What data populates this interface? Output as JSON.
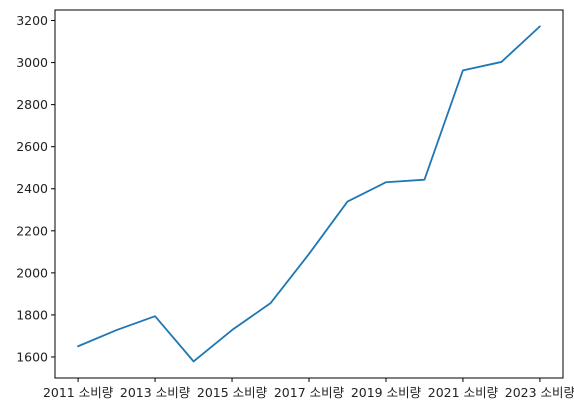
{
  "chart_data": {
    "type": "line",
    "title": "",
    "xlabel": "",
    "ylabel": "",
    "x": [
      2011,
      2012,
      2013,
      2014,
      2015,
      2016,
      2017,
      2018,
      2019,
      2020,
      2021,
      2022,
      2023
    ],
    "series": [
      {
        "values": [
          1651,
          1728,
          1794,
          1579,
          1728,
          1856,
          2090,
          2339,
          2431,
          2443,
          2963,
          3003,
          3172
        ],
        "color": "#1f77b4"
      }
    ],
    "xticks": [
      2011,
      2013,
      2015,
      2017,
      2019,
      2021,
      2023
    ],
    "xtick_labels": [
      "2011 소비량",
      "2013 소비량",
      "2015 소비량",
      "2017 소비량",
      "2019 소비량",
      "2021 소비량",
      "2023 소비량"
    ],
    "yticks": [
      1600,
      1800,
      2000,
      2200,
      2400,
      2600,
      2800,
      3000,
      3200
    ],
    "ylim": [
      1500,
      3250
    ],
    "xlim": [
      2010.4,
      2023.6
    ],
    "grid": false,
    "legend": "none"
  }
}
